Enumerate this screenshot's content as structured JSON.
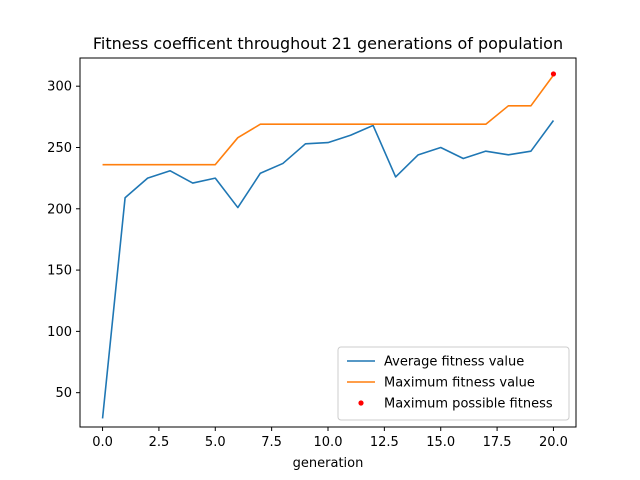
{
  "chart_data": {
    "type": "line",
    "title": "Fitness coefficent throughout 21 generations of population",
    "xlabel": "generation",
    "ylabel": "",
    "xlim": [
      -1.0,
      21.0
    ],
    "ylim": [
      22,
      323
    ],
    "xticks": [
      0.0,
      2.5,
      5.0,
      7.5,
      10.0,
      12.5,
      15.0,
      17.5,
      20.0
    ],
    "xtick_labels": [
      "0.0",
      "2.5",
      "5.0",
      "7.5",
      "10.0",
      "12.5",
      "15.0",
      "17.5",
      "20.0"
    ],
    "yticks": [
      50,
      100,
      150,
      200,
      250,
      300
    ],
    "ytick_labels": [
      "50",
      "100",
      "150",
      "200",
      "250",
      "300"
    ],
    "grid": false,
    "legend_position": "lower-right",
    "x": [
      0,
      1,
      2,
      3,
      4,
      5,
      6,
      7,
      8,
      9,
      10,
      11,
      12,
      13,
      14,
      15,
      16,
      17,
      18,
      19,
      20
    ],
    "series": [
      {
        "name": "Average fitness value",
        "color": "#1f77b4",
        "style": "line",
        "values": [
          29,
          209,
          225,
          231,
          221,
          225,
          201,
          229,
          237,
          253,
          254,
          260,
          268,
          226,
          244,
          250,
          241,
          247,
          244,
          247,
          272
        ]
      },
      {
        "name": "Maximum fitness value",
        "color": "#ff7f0e",
        "style": "line",
        "values": [
          236,
          236,
          236,
          236,
          236,
          236,
          258,
          269,
          269,
          269,
          269,
          269,
          269,
          269,
          269,
          269,
          269,
          269,
          284,
          284,
          309
        ]
      },
      {
        "name": "Maximum possible fitness",
        "color": "#ff0000",
        "style": "point",
        "x": [
          20
        ],
        "values": [
          310
        ]
      }
    ]
  }
}
